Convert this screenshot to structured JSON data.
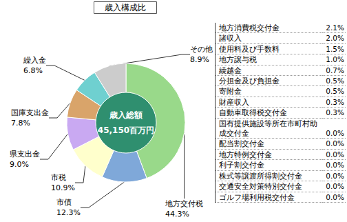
{
  "chart_data": {
    "type": "pie",
    "title": "歳入構成比",
    "annotations": [
      "歳入総額",
      "45,150百万円"
    ],
    "categories": [
      "地方交付税",
      "市債",
      "市税",
      "県支出金",
      "国庫支出金",
      "繰入金",
      "その他"
    ],
    "values": [
      44.3,
      12.3,
      10.9,
      9.0,
      7.8,
      6.8,
      8.9
    ],
    "value_labels": [
      "44.3%",
      "12.3%",
      "10.9%",
      "9.0%",
      "7.8%",
      "6.8%",
      "8.9%"
    ],
    "colors": [
      "#99d98a",
      "#7fa8d9",
      "#ffffcc",
      "#c9a9f2",
      "#d9a46a",
      "#6fd0d0",
      "#cccccc"
    ],
    "data_labels": true
  },
  "table": {
    "rows": [
      [
        "地方消費税交付金",
        "2.1%"
      ],
      [
        "諸収入",
        "2.0%"
      ],
      [
        "使用料及び手数料",
        "1.5%"
      ],
      [
        "地方譲与税",
        "1.0%"
      ],
      [
        "繰越金",
        "0.7%"
      ],
      [
        "分担金及び負担金",
        "0.5%"
      ],
      [
        "寄附金",
        "0.5%"
      ],
      [
        "財産収入",
        "0.3%"
      ],
      [
        "自動車取得税交付金",
        "0.3%"
      ],
      [
        "国有提供施設等所在市町村助成交付金",
        "0.0%"
      ],
      [
        "配当割交付金",
        "0.0%"
      ],
      [
        "地方特例交付金",
        "0.0%"
      ],
      [
        "利子割交付金",
        "0.0%"
      ],
      [
        "株式等譲渡所得割交付金",
        "0.0%"
      ],
      [
        "交通安全対策特別交付金",
        "0.0%"
      ],
      [
        "ゴルフ場利用税交付金",
        "0.0%"
      ]
    ]
  }
}
